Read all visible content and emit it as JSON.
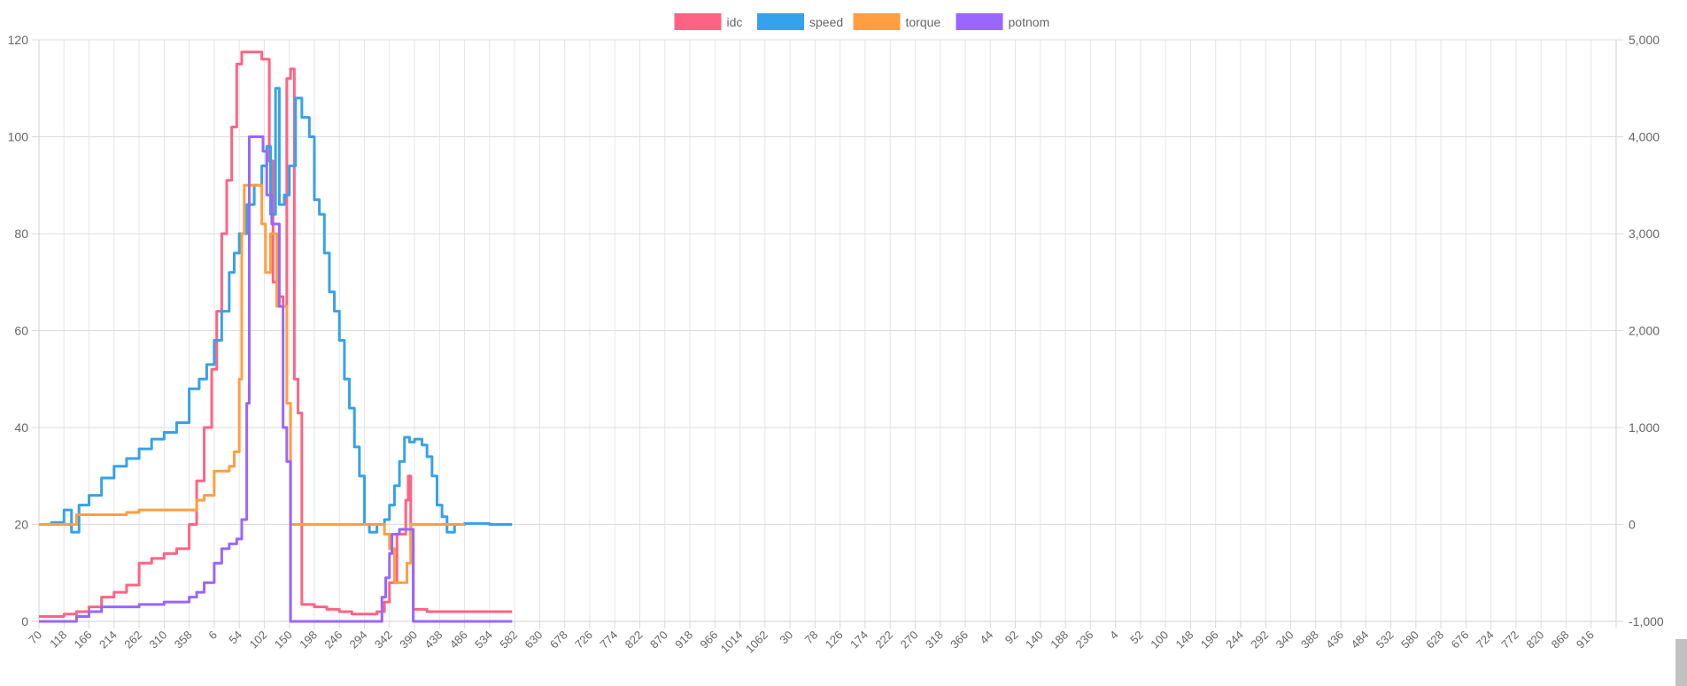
{
  "chart_data": {
    "type": "line",
    "grid": true,
    "legend_position": "top",
    "x_tick_labels": [
      "70",
      "118",
      "166",
      "214",
      "262",
      "310",
      "358",
      "6",
      "54",
      "102",
      "150",
      "198",
      "246",
      "294",
      "342",
      "390",
      "438",
      "486",
      "534",
      "582",
      "630",
      "678",
      "726",
      "774",
      "822",
      "870",
      "918",
      "966",
      "1014",
      "1062",
      "30",
      "78",
      "126",
      "174",
      "222",
      "270",
      "318",
      "366",
      "44",
      "92",
      "140",
      "188",
      "236",
      "4",
      "52",
      "100",
      "148",
      "196",
      "244",
      "292",
      "340",
      "388",
      "436",
      "484",
      "532",
      "580",
      "628",
      "676",
      "724",
      "772",
      "820",
      "868",
      "916"
    ],
    "y_left": {
      "ylim": [
        0,
        120
      ],
      "ticks": [
        "0",
        "20",
        "40",
        "60",
        "80",
        "100",
        "120"
      ]
    },
    "y_right": {
      "ylim": [
        -1000,
        5000
      ],
      "ticks": [
        "-1,000",
        "0",
        "1,000",
        "2,000",
        "3,000",
        "4,000",
        "5,000"
      ]
    },
    "series": [
      {
        "name": "idc",
        "color": "#ff6384",
        "axis": "left",
        "points": [
          [
            0,
            1
          ],
          [
            0.5,
            1
          ],
          [
            1,
            1.5
          ],
          [
            1.5,
            2
          ],
          [
            2,
            3
          ],
          [
            2.5,
            5
          ],
          [
            3,
            6
          ],
          [
            3.5,
            7.5
          ],
          [
            4,
            12
          ],
          [
            4.5,
            13
          ],
          [
            5,
            14
          ],
          [
            5.5,
            15
          ],
          [
            6,
            20
          ],
          [
            6.3,
            29
          ],
          [
            6.6,
            40
          ],
          [
            6.9,
            52
          ],
          [
            7.1,
            64
          ],
          [
            7.3,
            80
          ],
          [
            7.5,
            91
          ],
          [
            7.7,
            102
          ],
          [
            7.9,
            115
          ],
          [
            8.1,
            117.5
          ],
          [
            8.5,
            117.5
          ],
          [
            8.9,
            116
          ],
          [
            9.2,
            95
          ],
          [
            9.35,
            70
          ],
          [
            9.55,
            67
          ],
          [
            9.75,
            65
          ],
          [
            9.9,
            112
          ],
          [
            10.05,
            114
          ],
          [
            10.2,
            50
          ],
          [
            10.35,
            43
          ],
          [
            10.5,
            3.5
          ],
          [
            11,
            3
          ],
          [
            11.5,
            2.5
          ],
          [
            12,
            2
          ],
          [
            12.5,
            1.5
          ],
          [
            13,
            1.5
          ],
          [
            13.5,
            2
          ],
          [
            13.8,
            4
          ],
          [
            14,
            8
          ],
          [
            14.3,
            18
          ],
          [
            14.5,
            18
          ],
          [
            14.65,
            25
          ],
          [
            14.75,
            30
          ],
          [
            14.85,
            15
          ],
          [
            14.95,
            2.5
          ],
          [
            15.5,
            2
          ],
          [
            16,
            2
          ],
          [
            17,
            2
          ],
          [
            18,
            2
          ],
          [
            18.9,
            2
          ]
        ]
      },
      {
        "name": "speed",
        "color": "#36a2eb",
        "axis": "right",
        "points": [
          [
            0,
            0
          ],
          [
            0.5,
            20
          ],
          [
            1,
            150
          ],
          [
            1.3,
            -80
          ],
          [
            1.6,
            200
          ],
          [
            2,
            300
          ],
          [
            2.5,
            480
          ],
          [
            3,
            600
          ],
          [
            3.5,
            680
          ],
          [
            4,
            780
          ],
          [
            4.5,
            880
          ],
          [
            5,
            950
          ],
          [
            5.5,
            1050
          ],
          [
            6,
            1400
          ],
          [
            6.4,
            1500
          ],
          [
            6.7,
            1650
          ],
          [
            7,
            1900
          ],
          [
            7.3,
            2200
          ],
          [
            7.6,
            2600
          ],
          [
            7.8,
            2800
          ],
          [
            8,
            3000
          ],
          [
            8.3,
            3300
          ],
          [
            8.6,
            3500
          ],
          [
            8.9,
            3700
          ],
          [
            9.1,
            3900
          ],
          [
            9.25,
            3200
          ],
          [
            9.45,
            4500
          ],
          [
            9.55,
            4500
          ],
          [
            9.6,
            3300
          ],
          [
            9.8,
            3400
          ],
          [
            10,
            3700
          ],
          [
            10.25,
            4400
          ],
          [
            10.5,
            4200
          ],
          [
            10.8,
            4000
          ],
          [
            11,
            3350
          ],
          [
            11.2,
            3200
          ],
          [
            11.4,
            2800
          ],
          [
            11.6,
            2400
          ],
          [
            11.8,
            2200
          ],
          [
            12,
            1900
          ],
          [
            12.2,
            1500
          ],
          [
            12.4,
            1200
          ],
          [
            12.6,
            800
          ],
          [
            12.8,
            500
          ],
          [
            13,
            0
          ],
          [
            13.2,
            -80
          ],
          [
            13.5,
            0
          ],
          [
            13.8,
            50
          ],
          [
            14,
            200
          ],
          [
            14.2,
            400
          ],
          [
            14.4,
            650
          ],
          [
            14.6,
            900
          ],
          [
            14.8,
            850
          ],
          [
            15,
            880
          ],
          [
            15.3,
            820
          ],
          [
            15.5,
            700
          ],
          [
            15.7,
            500
          ],
          [
            15.9,
            200
          ],
          [
            16.1,
            80
          ],
          [
            16.3,
            -80
          ],
          [
            16.6,
            0
          ],
          [
            17,
            10
          ],
          [
            18,
            0
          ],
          [
            18.9,
            0
          ]
        ]
      },
      {
        "name": "torque",
        "color": "#ff9f40",
        "axis": "left",
        "points": [
          [
            0,
            20
          ],
          [
            1,
            20
          ],
          [
            1.5,
            22
          ],
          [
            2.5,
            22
          ],
          [
            3.5,
            22.5
          ],
          [
            4,
            23
          ],
          [
            5,
            23
          ],
          [
            6,
            23
          ],
          [
            6.3,
            25
          ],
          [
            6.6,
            26
          ],
          [
            7,
            31
          ],
          [
            7.6,
            32
          ],
          [
            7.8,
            35
          ],
          [
            8,
            50
          ],
          [
            8.1,
            80
          ],
          [
            8.2,
            90
          ],
          [
            8.7,
            90
          ],
          [
            8.9,
            82
          ],
          [
            9.05,
            72
          ],
          [
            9.25,
            80
          ],
          [
            9.5,
            65
          ],
          [
            9.75,
            65
          ],
          [
            9.9,
            45
          ],
          [
            10.05,
            20
          ],
          [
            11,
            20
          ],
          [
            12,
            20
          ],
          [
            13,
            20
          ],
          [
            13.5,
            20
          ],
          [
            13.8,
            18
          ],
          [
            14,
            15
          ],
          [
            14.2,
            8
          ],
          [
            14.45,
            8
          ],
          [
            14.7,
            12
          ],
          [
            14.85,
            20
          ],
          [
            15.5,
            20
          ],
          [
            16.5,
            20
          ],
          [
            17,
            20
          ]
        ]
      },
      {
        "name": "potnom",
        "color": "#9966ff",
        "axis": "left",
        "points": [
          [
            0,
            0
          ],
          [
            1,
            0
          ],
          [
            1.5,
            1
          ],
          [
            2,
            2
          ],
          [
            2.5,
            3
          ],
          [
            3.5,
            3
          ],
          [
            4,
            3.5
          ],
          [
            5,
            4
          ],
          [
            5.5,
            4
          ],
          [
            6,
            5
          ],
          [
            6.3,
            6
          ],
          [
            6.6,
            8
          ],
          [
            7,
            12
          ],
          [
            7.3,
            15
          ],
          [
            7.6,
            16
          ],
          [
            7.9,
            17
          ],
          [
            8.1,
            21
          ],
          [
            8.3,
            45
          ],
          [
            8.4,
            100
          ],
          [
            8.8,
            100
          ],
          [
            8.95,
            97
          ],
          [
            9.1,
            88
          ],
          [
            9.3,
            82
          ],
          [
            9.45,
            82
          ],
          [
            9.6,
            65
          ],
          [
            9.75,
            40
          ],
          [
            9.9,
            33
          ],
          [
            10.05,
            0
          ],
          [
            11,
            0
          ],
          [
            12,
            0
          ],
          [
            13,
            0
          ],
          [
            13.5,
            0
          ],
          [
            13.7,
            5
          ],
          [
            13.85,
            9
          ],
          [
            14,
            14
          ],
          [
            14.1,
            18
          ],
          [
            14.4,
            19
          ],
          [
            14.85,
            19
          ],
          [
            14.95,
            0
          ],
          [
            16,
            0
          ],
          [
            17,
            0
          ],
          [
            18.9,
            0
          ]
        ]
      }
    ]
  }
}
